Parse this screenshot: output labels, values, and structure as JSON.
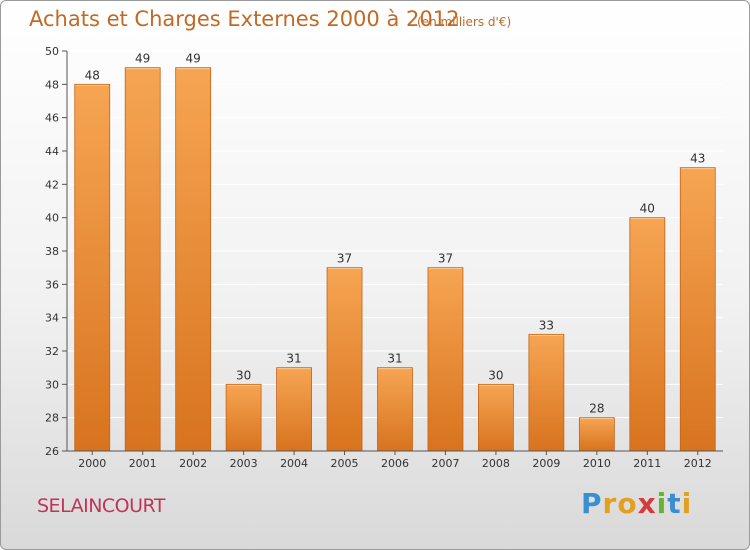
{
  "header": {
    "title": "Achats et Charges Externes 2000 à 2012",
    "subtitle": "(en milliers d'€)"
  },
  "footer": {
    "commune": "SELAINCOURT",
    "logo": "Proxiti",
    "logo_letters": [
      {
        "ch": "P",
        "color": "#3a8fd0"
      },
      {
        "ch": "r",
        "color": "#e2a020"
      },
      {
        "ch": "o",
        "color": "#e2a020"
      },
      {
        "ch": "x",
        "color": "#d43c3c"
      },
      {
        "ch": "i",
        "color": "#66b32e"
      },
      {
        "ch": "t",
        "color": "#3a8fd0"
      },
      {
        "ch": "i",
        "color": "#e2a020"
      }
    ]
  },
  "colors": {
    "bar_light": "#f6a553",
    "bar_dark": "#d8731e",
    "bar_edge": "#c46418",
    "title": "#c06a25",
    "commune": "#c03458",
    "axis": "#555555",
    "grid": "#ffffff"
  },
  "chart_data": {
    "type": "bar",
    "title": "Achats et Charges Externes 2000 à 2012",
    "subtitle": "(en milliers d'€)",
    "categories": [
      "2000",
      "2001",
      "2002",
      "2003",
      "2004",
      "2005",
      "2006",
      "2007",
      "2008",
      "2009",
      "2010",
      "2011",
      "2012"
    ],
    "values": [
      48,
      49,
      49,
      30,
      31,
      37,
      31,
      37,
      30,
      33,
      28,
      40,
      43
    ],
    "ylim": [
      26,
      50
    ],
    "yticks": [
      26,
      28,
      30,
      32,
      34,
      36,
      38,
      40,
      42,
      44,
      46,
      48,
      50
    ],
    "data_labels": true,
    "grid": true,
    "legend": "none"
  }
}
